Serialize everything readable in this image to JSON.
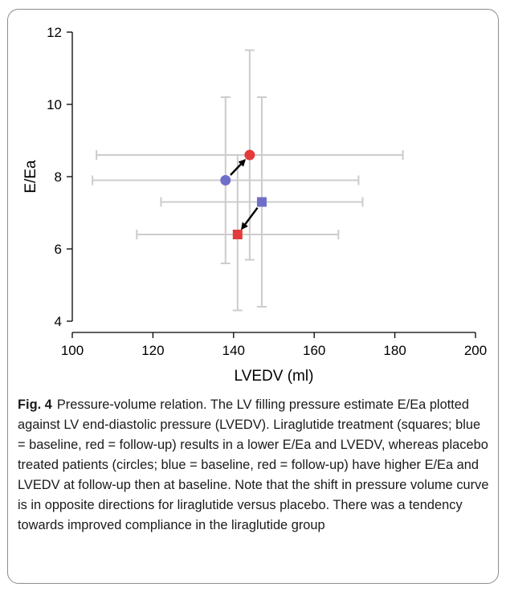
{
  "chart_data": {
    "type": "scatter",
    "title": "",
    "xlabel": "LVEDV (ml)",
    "ylabel": "E/Ea",
    "xlim": [
      100,
      200
    ],
    "ylim": [
      4,
      12
    ],
    "xticks": [
      100,
      120,
      140,
      160,
      180,
      200
    ],
    "yticks": [
      4,
      6,
      8,
      10,
      12
    ],
    "grid": false,
    "legend": "none",
    "colors": {
      "baseline": "#6f6fc9",
      "followup": "#e33b3b",
      "errorbar": "#cccccc",
      "arrow": "#000000"
    },
    "points": [
      {
        "id": "placebo-baseline",
        "group": "placebo",
        "visit": "baseline",
        "marker": "circle",
        "x": 138,
        "y": 7.9,
        "x_err": [
          105,
          171
        ],
        "y_err": [
          5.6,
          10.2
        ]
      },
      {
        "id": "placebo-followup",
        "group": "placebo",
        "visit": "follow-up",
        "marker": "circle",
        "x": 144,
        "y": 8.6,
        "x_err": [
          106,
          182
        ],
        "y_err": [
          5.7,
          11.5
        ]
      },
      {
        "id": "liraglutide-baseline",
        "group": "liraglutide",
        "visit": "baseline",
        "marker": "square",
        "x": 147,
        "y": 7.3,
        "x_err": [
          122,
          172
        ],
        "y_err": [
          4.4,
          10.2
        ]
      },
      {
        "id": "liraglutide-followup",
        "group": "liraglutide",
        "visit": "follow-up",
        "marker": "square",
        "x": 141,
        "y": 6.4,
        "x_err": [
          116,
          166
        ],
        "y_err": [
          4.3,
          8.6
        ]
      }
    ],
    "arrows": [
      {
        "from": "placebo-baseline",
        "to": "placebo-followup"
      },
      {
        "from": "liraglutide-baseline",
        "to": "liraglutide-followup"
      }
    ]
  },
  "caption": {
    "label": "Fig. 4",
    "text": "Pressure-volume relation. The LV filling pressure estimate E/Ea plotted against LV end-diastolic pressure (LVEDV). Liraglutide treatment (squares; blue = baseline, red = follow-up) results in a lower E/Ea and LVEDV, whereas placebo treated patients (circles; blue = baseline, red = follow-up) have higher E/Ea and LVEDV at follow-up then at baseline. Note that the shift in pressure volume curve is in opposite directions for liraglutide versus placebo. There was a tendency towards improved compliance in the liraglutide group"
  }
}
